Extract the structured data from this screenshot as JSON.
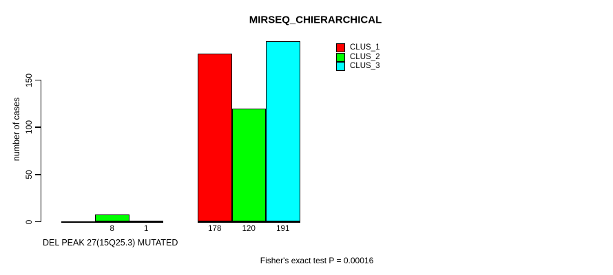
{
  "chart_data": {
    "type": "bar",
    "title": "MIRSEQ_CHIERARCHICAL",
    "ylabel": "number of cases",
    "xlabel": "DEL PEAK 27(15Q25.3) MUTATED",
    "footer": "Fisher's exact test P = 0.00016",
    "ylim": [
      0,
      150
    ],
    "yticks": [
      0,
      50,
      100,
      150
    ],
    "grid": false,
    "legend_position": "top-right",
    "categories": [
      "DEL PEAK 27(15Q25.3) MUTATED",
      ""
    ],
    "series": [
      {
        "name": "CLUS_1",
        "color": "#ff0000",
        "values": [
          0,
          178
        ]
      },
      {
        "name": "CLUS_2",
        "color": "#00ff00",
        "values": [
          8,
          120
        ]
      },
      {
        "name": "CLUS_3",
        "color": "#00ffff",
        "values": [
          1,
          191
        ]
      }
    ],
    "bar_labels": [
      [
        "",
        "8",
        "1"
      ],
      [
        "178",
        "120",
        "191"
      ]
    ]
  }
}
